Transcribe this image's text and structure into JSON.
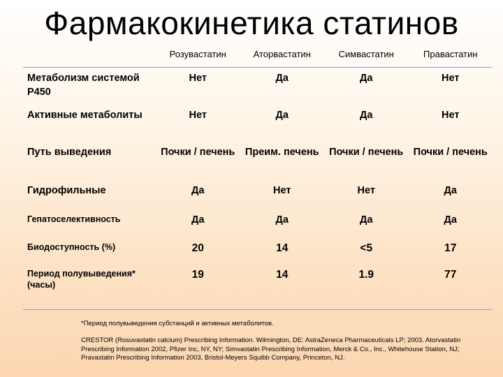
{
  "slide": {
    "title": "Фармакокинетика статинов"
  },
  "table": {
    "columns": [
      "Розувастатин",
      "Аторвастатин",
      "Симвастатин",
      "Правастатин"
    ],
    "rows": [
      {
        "label": "Метаболизм системой P450",
        "values": [
          "Нет",
          "Да",
          "Да",
          "Нет"
        ]
      },
      {
        "label": "Активные метаболиты",
        "values": [
          "Нет",
          "Да",
          "Да",
          "Нет"
        ]
      },
      {
        "label": "Путь выведения",
        "values": [
          "Почки / печень",
          "Преим. печень",
          "Почки / печень",
          "Почки / печень"
        ]
      },
      {
        "label": "Гидрофильные",
        "values": [
          "Да",
          "Нет",
          "Нет",
          "Да"
        ]
      },
      {
        "label": "Гепатоселективность",
        "values": [
          "Да",
          "Да",
          "Да",
          "Да"
        ]
      },
      {
        "label": "Биодоступность (%)",
        "values": [
          "20",
          "14",
          "<5",
          "17"
        ]
      },
      {
        "label": "Период полувыведения* (часы)",
        "values": [
          "19",
          "14",
          "1.9",
          "77"
        ]
      }
    ]
  },
  "footnote": {
    "asterisk": "*Период полувыведения субстанций и активных метаболитов.",
    "reference": "CRESTOR (Rosuvastatin calcium) Prescribing Information. Wilmington, DE: AstraZeneca Pharmaceuticals LP; 2003. Atorvastatin Prescribing Information 2002, Pfizer Inc, NY, NY; Simvastatin Prescribing Information, Merck & Co., Inc., Whitehouse Station, NJ; Pravastatin Prescribing Information 2003, Bristol-Meyers Squibb Company, Princeton, NJ."
  }
}
